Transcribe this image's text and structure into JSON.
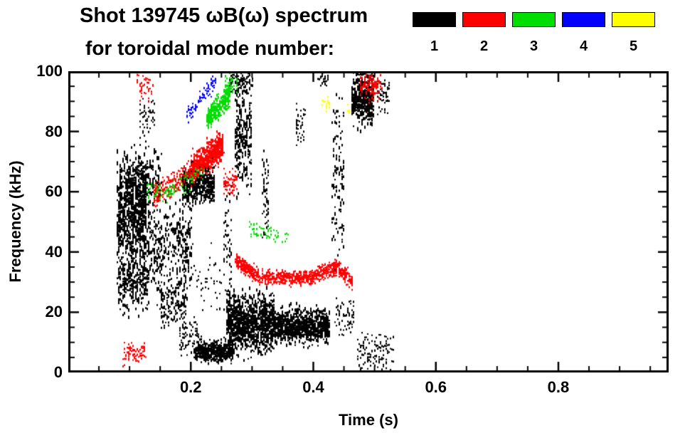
{
  "chart_data": {
    "type": "scatter",
    "title": "Shot 139745 ωB(ω) spectrum",
    "subtitle": "for toroidal mode number:",
    "xlabel": "Time (s)",
    "ylabel": "Frequency (kHz)",
    "xlim": [
      0.0,
      0.98
    ],
    "ylim": [
      0,
      100
    ],
    "xticks": [
      0.2,
      0.4,
      0.6,
      0.8
    ],
    "xtick_labels": [
      "0.2",
      "0.4",
      "0.6",
      "0.8"
    ],
    "x_minor_step": 0.05,
    "yticks": [
      0,
      20,
      40,
      60,
      80,
      100
    ],
    "ytick_labels": [
      "0",
      "20",
      "40",
      "60",
      "80",
      "100"
    ],
    "y_minor_step": 5,
    "grid": false,
    "legend": {
      "position": "top-right",
      "entries": [
        {
          "label": "1",
          "color": "#000000"
        },
        {
          "label": "2",
          "color": "#ff0000"
        },
        {
          "label": "3",
          "color": "#00dd00"
        },
        {
          "label": "4",
          "color": "#0000ff"
        },
        {
          "label": "5",
          "color": "#ffff00"
        }
      ]
    },
    "cluster_format": "[t_start, t_end, f_center_start_kHz, f_center_end_kHz, f_spread_kHz, n_points, min_streak_px, max_streak_px]",
    "series": [
      {
        "name": "n=1",
        "color": "#000000",
        "clusters": [
          [
            0.078,
            0.126,
            52,
            52,
            17,
            650,
            2,
            7
          ],
          [
            0.08,
            0.13,
            30,
            30,
            9,
            260,
            2,
            5
          ],
          [
            0.095,
            0.15,
            64,
            64,
            8,
            240,
            2,
            5
          ],
          [
            0.125,
            0.2,
            42,
            40,
            16,
            380,
            2,
            6
          ],
          [
            0.15,
            0.19,
            22,
            22,
            9,
            140,
            2,
            4
          ],
          [
            0.185,
            0.237,
            62,
            63,
            6,
            500,
            2,
            5
          ],
          [
            0.205,
            0.268,
            7,
            7,
            3.5,
            520,
            2,
            4
          ],
          [
            0.258,
            0.335,
            17,
            16,
            9,
            950,
            2,
            6
          ],
          [
            0.335,
            0.425,
            15.5,
            15.5,
            5.5,
            850,
            2,
            5
          ],
          [
            0.272,
            0.298,
            80,
            80,
            19,
            240,
            2,
            6
          ],
          [
            0.262,
            0.3,
            96,
            96,
            3.5,
            80,
            2,
            4
          ],
          [
            0.115,
            0.14,
            85,
            85,
            8,
            55,
            2,
            3
          ],
          [
            0.429,
            0.449,
            65,
            65,
            27,
            120,
            2,
            5
          ],
          [
            0.462,
            0.497,
            91,
            91,
            8,
            380,
            2,
            6
          ],
          [
            0.503,
            0.522,
            93,
            93,
            6,
            55,
            2,
            3
          ],
          [
            0.47,
            0.53,
            7,
            7,
            6,
            130,
            2,
            3
          ],
          [
            0.315,
            0.325,
            60,
            60,
            15,
            65,
            2,
            4
          ],
          [
            0.37,
            0.386,
            83,
            83,
            7,
            45,
            2,
            3
          ],
          [
            0.405,
            0.425,
            97,
            97,
            2.5,
            30,
            2,
            3
          ],
          [
            0.18,
            0.215,
            12,
            12,
            7,
            80,
            2,
            3
          ],
          [
            0.253,
            0.266,
            40,
            40,
            24,
            70,
            2,
            4
          ],
          [
            0.19,
            0.25,
            30,
            30,
            12,
            45,
            2,
            3
          ],
          [
            0.435,
            0.465,
            18,
            18,
            7,
            70,
            2,
            3
          ]
        ]
      },
      {
        "name": "n=2",
        "color": "#ff0000",
        "clusters": [
          [
            0.138,
            0.2,
            58,
            67,
            3.5,
            220,
            2,
            3
          ],
          [
            0.2,
            0.252,
            67,
            76,
            5,
            520,
            2,
            4
          ],
          [
            0.252,
            0.274,
            63,
            63,
            4,
            70,
            2,
            3
          ],
          [
            0.272,
            0.31,
            37,
            32,
            2.5,
            240,
            2,
            3
          ],
          [
            0.31,
            0.4,
            31.5,
            31.5,
            2.2,
            400,
            2,
            3
          ],
          [
            0.4,
            0.44,
            32,
            35.5,
            2.2,
            190,
            2,
            3
          ],
          [
            0.44,
            0.463,
            35,
            29.5,
            2.5,
            130,
            2,
            3
          ],
          [
            0.088,
            0.125,
            6,
            6,
            3.5,
            80,
            2,
            3
          ],
          [
            0.112,
            0.138,
            95,
            95,
            4,
            45,
            2,
            3
          ],
          [
            0.475,
            0.51,
            95,
            95,
            4.5,
            110,
            2,
            4
          ]
        ]
      },
      {
        "name": "n=3",
        "color": "#00dd00",
        "clusters": [
          [
            0.225,
            0.263,
            84,
            92,
            3.5,
            300,
            2,
            4
          ],
          [
            0.254,
            0.275,
            96,
            96,
            3,
            45,
            2,
            3
          ],
          [
            0.15,
            0.222,
            58,
            67,
            3,
            70,
            2,
            3
          ],
          [
            0.295,
            0.36,
            47,
            45,
            3,
            55,
            2,
            3
          ],
          [
            0.128,
            0.15,
            60,
            60,
            4,
            25,
            2,
            3
          ]
        ]
      },
      {
        "name": "n=4",
        "color": "#0000ff",
        "clusters": [
          [
            0.193,
            0.24,
            85,
            97,
            3,
            85,
            2,
            3
          ]
        ]
      },
      {
        "name": "n=5",
        "color": "#ffff00",
        "clusters": [
          [
            0.413,
            0.427,
            89,
            89,
            2.5,
            14,
            2,
            3
          ],
          [
            0.455,
            0.462,
            87,
            87,
            2,
            8,
            2,
            3
          ]
        ]
      }
    ]
  }
}
